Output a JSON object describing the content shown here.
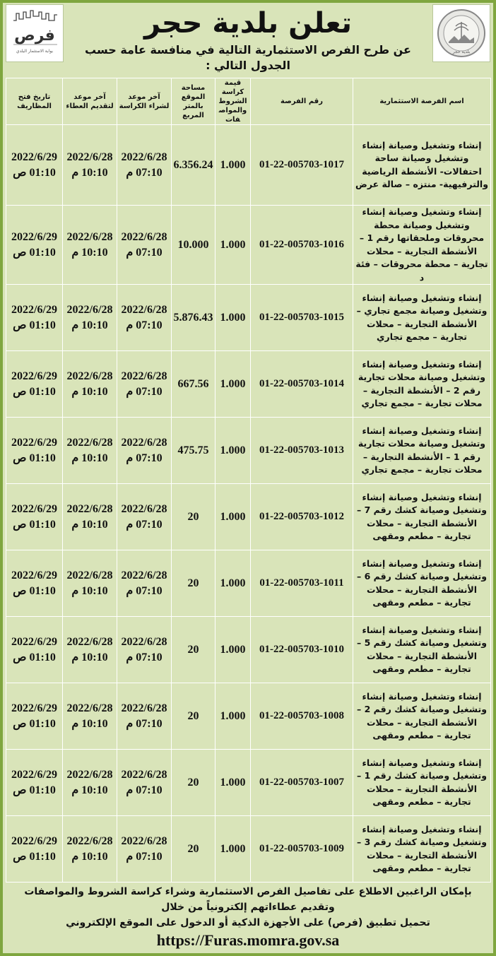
{
  "header": {
    "title": "تعلن بلدية حجر",
    "subtitle": "عن طرح الفرص الاستثمارية التالية في منافسة عامة حسب الجدول التالي :",
    "left_logo_text": "فرص",
    "left_logo_caption": "بوابة الاستثمار البلدي",
    "right_logo_caption": "بلدية حجر"
  },
  "table": {
    "columns": [
      "اسم الفرصة الاستثمارية",
      "رقم الفرصة",
      "قيمة كراسة الشروط والمواصفات",
      "مساحة الموقع بالمتر المربع",
      "آخر موعد لشراء الكراسة",
      "آخر موعد لتقديم العطاء",
      "تاريخ فتح المظاريف"
    ],
    "rows": [
      {
        "name": "إنشاء وتشغيل وصيانة إنشاء وتشغيل وصيانة ساحة احتفالات- الأنشطة الرياضية والترفيهية- منتزه – صالة عرض",
        "number": "01-22-005703-1017",
        "value": "1.000",
        "area": "6.356.24",
        "purchase_date": "2022/6/28",
        "purchase_time": "07:10 م",
        "submit_date": "2022/6/28",
        "submit_time": "10:10 م",
        "open_date": "2022/6/29",
        "open_time": "01:10 ص"
      },
      {
        "name": "إنشاء وتشغيل وصيانة إنشاء وتشغيل وصيانة محطة محروقات وملحقاتها رقم 1 – الأنشطة التجارية – محلات تجارية – محطة محروقات – فئة د",
        "number": "01-22-005703-1016",
        "value": "1.000",
        "area": "10.000",
        "purchase_date": "2022/6/28",
        "purchase_time": "07:10 م",
        "submit_date": "2022/6/28",
        "submit_time": "10:10 م",
        "open_date": "2022/6/29",
        "open_time": "01:10 ص"
      },
      {
        "name": "إنشاء وتشغيل وصيانة إنشاء وتشغيل وصيانة مجمع تجاري – الأنشطة التجارية – محلات تجارية – مجمع تجاري",
        "number": "01-22-005703-1015",
        "value": "1.000",
        "area": "5.876.43",
        "purchase_date": "2022/6/28",
        "purchase_time": "07:10 م",
        "submit_date": "2022/6/28",
        "submit_time": "10:10 م",
        "open_date": "2022/6/29",
        "open_time": "01:10 ص"
      },
      {
        "name": "إنشاء وتشغيل وصيانة إنشاء وتشغيل وصيانة محلات تجارية رقم 2 – الأنشطة التجارية – محلات تجارية – مجمع تجاري",
        "number": "01-22-005703-1014",
        "value": "1.000",
        "area": "667.56",
        "purchase_date": "2022/6/28",
        "purchase_time": "07:10 م",
        "submit_date": "2022/6/28",
        "submit_time": "10:10 م",
        "open_date": "2022/6/29",
        "open_time": "01:10 ص"
      },
      {
        "name": "إنشاء وتشغيل وصيانة إنشاء وتشغيل وصيانة محلات تجارية رقم 1 – الأنشطة التجارية – محلات تجارية – مجمع تجاري",
        "number": "01-22-005703-1013",
        "value": "1.000",
        "area": "475.75",
        "purchase_date": "2022/6/28",
        "purchase_time": "07:10 م",
        "submit_date": "2022/6/28",
        "submit_time": "10:10 م",
        "open_date": "2022/6/29",
        "open_time": "01:10 ص"
      },
      {
        "name": "إنشاء وتشغيل وصيانة إنشاء وتشغيل وصيانة كشك رقم 7 – الأنشطة التجارية – محلات تجارية – مطعم ومقهى",
        "number": "01-22-005703-1012",
        "value": "1.000",
        "area": "20",
        "purchase_date": "2022/6/28",
        "purchase_time": "07:10 م",
        "submit_date": "2022/6/28",
        "submit_time": "10:10 م",
        "open_date": "2022/6/29",
        "open_time": "01:10 ص"
      },
      {
        "name": "إنشاء وتشغيل وصيانة إنشاء وتشغيل وصيانة كشك رقم 6 – الأنشطة التجارية – محلات تجارية – مطعم ومقهى",
        "number": "01-22-005703-1011",
        "value": "1.000",
        "area": "20",
        "purchase_date": "2022/6/28",
        "purchase_time": "07:10 م",
        "submit_date": "2022/6/28",
        "submit_time": "10:10 م",
        "open_date": "2022/6/29",
        "open_time": "01:10 ص"
      },
      {
        "name": "إنشاء وتشغيل وصيانة إنشاء وتشغيل وصيانة كشك رقم 5 – الأنشطة التجارية – محلات تجارية – مطعم ومقهى",
        "number": "01-22-005703-1010",
        "value": "1.000",
        "area": "20",
        "purchase_date": "2022/6/28",
        "purchase_time": "07:10 م",
        "submit_date": "2022/6/28",
        "submit_time": "10:10 م",
        "open_date": "2022/6/29",
        "open_time": "01:10 ص"
      },
      {
        "name": "إنشاء وتشغيل وصيانة إنشاء وتشغيل وصيانة كشك رقم 2 – الأنشطة التجارية – محلات تجارية – مطعم ومقهى",
        "number": "01-22-005703-1008",
        "value": "1.000",
        "area": "20",
        "purchase_date": "2022/6/28",
        "purchase_time": "07:10 م",
        "submit_date": "2022/6/28",
        "submit_time": "10:10 م",
        "open_date": "2022/6/29",
        "open_time": "01:10 ص"
      },
      {
        "name": "إنشاء وتشغيل وصيانة إنشاء وتشغيل وصيانة كشك رقم 1 – الأنشطة التجارية – محلات تجارية – مطعم ومقهى",
        "number": "01-22-005703-1007",
        "value": "1.000",
        "area": "20",
        "purchase_date": "2022/6/28",
        "purchase_time": "07:10 م",
        "submit_date": "2022/6/28",
        "submit_time": "10:10 م",
        "open_date": "2022/6/29",
        "open_time": "01:10 ص"
      },
      {
        "name": "إنشاء وتشغيل وصيانة إنشاء وتشغيل وصيانة كشك رقم 3 – الأنشطة التجارية – محلات تجارية – مطعم ومقهى",
        "number": "01-22-005703-1009",
        "value": "1.000",
        "area": "20",
        "purchase_date": "2022/6/28",
        "purchase_time": "07:10 م",
        "submit_date": "2022/6/28",
        "submit_time": "10:10 م",
        "open_date": "2022/6/29",
        "open_time": "01:10 ص"
      }
    ]
  },
  "footer": {
    "line1": "بإمكان الراغبين الاطلاع على تفاصيل الفرص الاستثمارية وشراء كراسة الشروط والمواصفات وتقديم عطاءاتهم إلكترونياً من خلال",
    "line2": "تحميل تطبيق (فرص) على الأجهزة الذكية أو الدخول على الموقع الإلكتروني",
    "url": "https://Furas.momra.gov.sa"
  },
  "colors": {
    "border": "#7fa63f",
    "background": "#d9e4b9",
    "text": "#111111"
  }
}
